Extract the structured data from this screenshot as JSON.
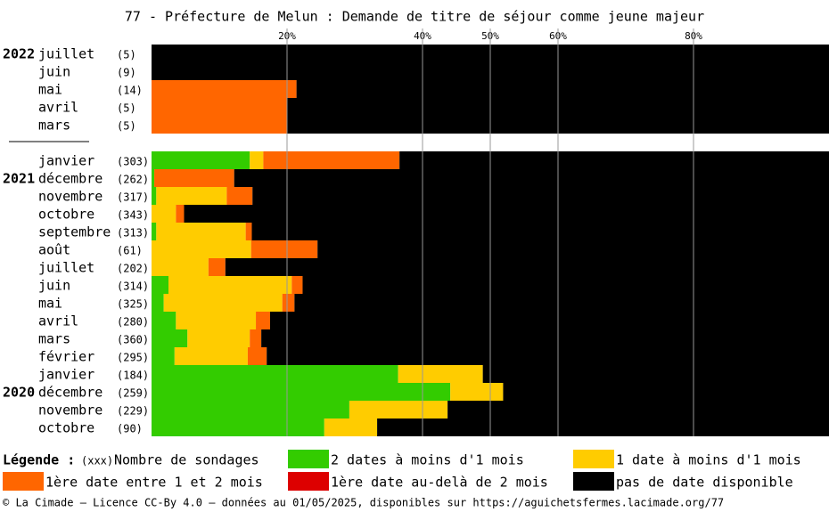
{
  "chart_data": {
    "type": "stacked-bar-horizontal",
    "title": "77 - Préfecture de Melun : Demande de titre de séjour comme jeune majeur",
    "categories": [
      "juillet",
      "juin",
      "mai",
      "avril",
      "mars",
      null,
      "janvier",
      "décembre",
      "novembre",
      "octobre",
      "septembre",
      "août",
      "juillet",
      "juin",
      "mai",
      "avril",
      "mars",
      "février",
      "janvier",
      "décembre",
      "novembre",
      "octobre"
    ],
    "year_labels": [
      "2022",
      null,
      null,
      null,
      null,
      null,
      null,
      "2021",
      null,
      null,
      null,
      null,
      null,
      null,
      null,
      null,
      null,
      null,
      null,
      "2020",
      null,
      null
    ],
    "sample_labels": [
      "(5)",
      "(9)",
      "(14)",
      "(5)",
      "(5)",
      null,
      "(303)",
      "(262)",
      "(317)",
      "(343)",
      "(313)",
      "(61)",
      "(202)",
      "(314)",
      "(325)",
      "(280)",
      "(360)",
      "(295)",
      "(184)",
      "(259)",
      "(229)",
      "(90)"
    ],
    "series": [
      {
        "name": "2 dates à moins d'1 mois",
        "color": "#33cc00",
        "values": [
          0,
          0,
          0,
          0,
          0,
          null,
          14.5,
          0.4,
          0.7,
          0,
          0.7,
          0,
          0,
          2.5,
          1.8,
          3.6,
          5.3,
          3.4,
          36.4,
          44.1,
          29.2,
          25.5
        ]
      },
      {
        "name": "1 date à moins d'1 mois",
        "color": "#ffcc00",
        "values": [
          0,
          0,
          0,
          0,
          0,
          null,
          2.0,
          0,
          10.4,
          3.6,
          13.2,
          14.7,
          8.4,
          18.2,
          17.5,
          11.8,
          9.2,
          10.8,
          12.5,
          7.8,
          14.5,
          7.8
        ]
      },
      {
        "name": "1ère date entre 1 et 2 mois",
        "color": "#ff6600",
        "values": [
          0,
          0,
          21.4,
          20,
          20,
          null,
          20.1,
          11.8,
          3.8,
          1.2,
          0.9,
          9.8,
          2.5,
          1.6,
          1.8,
          2.1,
          1.7,
          2.8,
          0,
          0,
          0,
          0
        ]
      },
      {
        "name": "1ère date au-delà de 2 mois",
        "color": "#dd0000",
        "values": [
          0,
          0,
          0,
          0,
          0,
          null,
          0,
          0,
          0,
          0,
          0,
          0,
          0,
          0,
          0,
          0,
          0,
          0,
          0,
          0,
          0,
          0
        ]
      },
      {
        "name": "pas de date disponible",
        "color": "#000000",
        "values": [
          100,
          100,
          78.6,
          80,
          80,
          null,
          63.4,
          87.8,
          85.1,
          95.2,
          85.2,
          75.5,
          89.1,
          77.7,
          78.9,
          82.5,
          83.8,
          83.0,
          51.1,
          48.1,
          56.3,
          66.7
        ]
      }
    ],
    "xlim": [
      0,
      100
    ],
    "xticks": [
      {
        "value": 20,
        "label": "20%"
      },
      {
        "value": 40,
        "label": "40%"
      },
      {
        "value": 50,
        "label": "50%"
      },
      {
        "value": 60,
        "label": "60%"
      },
      {
        "value": 80,
        "label": "80%"
      }
    ],
    "grid": true,
    "legend_title": "Légende :",
    "sample_legend": {
      "label": "(xxx)",
      "text": "Nombre de sondages"
    },
    "footer": "© La Cimade — Licence CC-By 4.0 — données au 01/05/2025, disponibles sur https://aguichetsfermes.lacimade.org/77"
  }
}
